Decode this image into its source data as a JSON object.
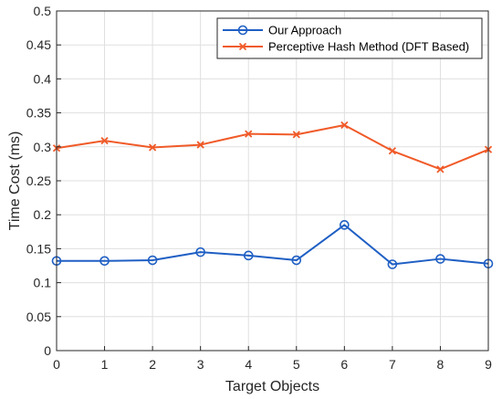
{
  "chart_data": {
    "type": "line",
    "title": "",
    "xlabel": "Target Objects",
    "ylabel": "Time Cost (ms)",
    "x": [
      0,
      1,
      2,
      3,
      4,
      5,
      6,
      7,
      8,
      9
    ],
    "xlim": [
      0,
      9
    ],
    "ylim": [
      0,
      0.5
    ],
    "xticks": [
      "0",
      "1",
      "2",
      "3",
      "4",
      "5",
      "6",
      "7",
      "8",
      "9"
    ],
    "yticks": [
      "0",
      "0.05",
      "0.1",
      "0.15",
      "0.2",
      "0.25",
      "0.3",
      "0.35",
      "0.4",
      "0.45",
      "0.5"
    ],
    "grid": true,
    "legend_position": "top-right",
    "series": [
      {
        "name": "Our Approach",
        "marker": "circle",
        "color": "#1f5fc4",
        "values": [
          0.132,
          0.132,
          0.133,
          0.145,
          0.14,
          0.133,
          0.185,
          0.127,
          0.135,
          0.128
        ]
      },
      {
        "name": "Perceptive Hash Method (DFT Based)",
        "marker": "x",
        "color": "#f05a28",
        "values": [
          0.298,
          0.309,
          0.299,
          0.303,
          0.319,
          0.318,
          0.332,
          0.294,
          0.267,
          0.296
        ]
      }
    ]
  }
}
